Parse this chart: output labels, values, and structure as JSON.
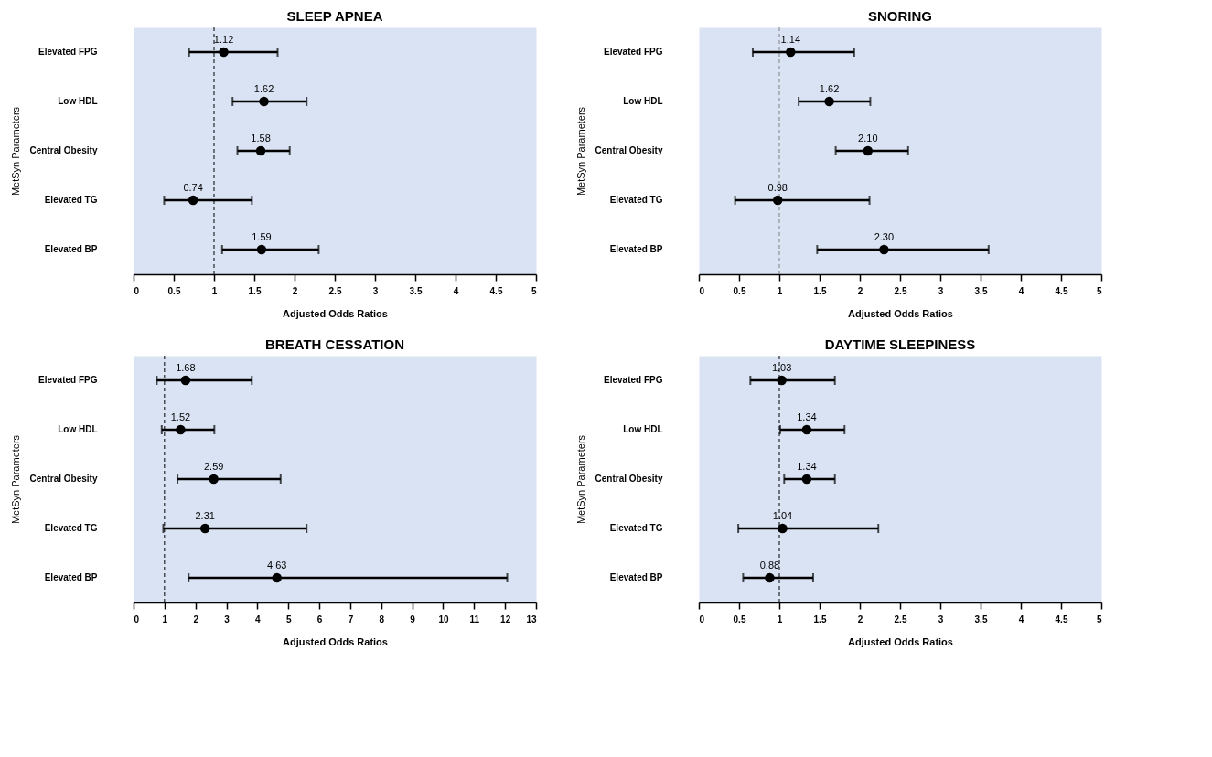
{
  "chart_data": [
    {
      "type": "scatter",
      "title": "SLEEP APNEA",
      "xlabel": "Adjusted Odds Ratios",
      "ylabel": "MetSyn Parameters",
      "orientation": "horizontal",
      "categories": [
        "Elevated FPG",
        "Low HDL",
        "Central Obesity",
        "Elevated TG",
        "Elevated BP"
      ],
      "values": [
        1.12,
        1.62,
        1.58,
        0.74,
        1.59
      ],
      "errors": [
        [
          0.69,
          1.79
        ],
        [
          1.23,
          2.15
        ],
        [
          1.29,
          1.94
        ],
        [
          0.38,
          1.47
        ],
        [
          1.1,
          2.3
        ]
      ],
      "value_labels": [
        "1.12",
        "1.62",
        "1.58",
        "0.74",
        "1.59"
      ],
      "color": "#000000",
      "marker": "circle",
      "grid": false,
      "xlim": [
        0,
        5
      ],
      "xticks": [
        0,
        0.5,
        1,
        1.5,
        2,
        2.5,
        3,
        3.5,
        4,
        4.5,
        5
      ],
      "ref_lines": [
        {
          "axis": "x",
          "value": 1,
          "line_style": "dashed",
          "color": "#000000"
        }
      ]
    },
    {
      "type": "scatter",
      "title": "SNORING",
      "xlabel": "Adjusted Odds Ratios",
      "ylabel": "MetSyn Parameters",
      "orientation": "horizontal",
      "categories": [
        "Elevated FPG",
        "Low HDL",
        "Central Obesity",
        "Elevated TG",
        "Elevated BP"
      ],
      "values": [
        1.14,
        1.62,
        2.1,
        0.98,
        2.3
      ],
      "errors": [
        [
          0.67,
          1.93
        ],
        [
          1.24,
          2.13
        ],
        [
          1.7,
          2.6
        ],
        [
          0.45,
          2.12
        ],
        [
          1.47,
          3.6
        ]
      ],
      "value_labels": [
        "1.14",
        "1.62",
        "2.10",
        "0.98",
        "2.30"
      ],
      "color": "#000000",
      "marker": "circle",
      "grid": false,
      "xlim": [
        0,
        5
      ],
      "xticks": [
        0,
        0.5,
        1,
        1.5,
        2,
        2.5,
        3,
        3.5,
        4,
        4.5,
        5
      ],
      "ref_lines": [
        {
          "axis": "x",
          "value": 1,
          "line_style": "dashed",
          "color": "#808080"
        }
      ]
    },
    {
      "type": "scatter",
      "title": "BREATH CESSATION",
      "xlabel": "Adjusted Odds Ratios",
      "ylabel": "MetSyn Parameters",
      "orientation": "horizontal",
      "categories": [
        "Elevated FPG",
        "Low HDL",
        "Central Obesity",
        "Elevated TG",
        "Elevated BP"
      ],
      "values": [
        1.68,
        1.52,
        2.59,
        2.31,
        4.63
      ],
      "errors": [
        [
          0.75,
          3.82
        ],
        [
          0.91,
          2.61
        ],
        [
          1.42,
          4.75
        ],
        [
          0.96,
          5.59
        ],
        [
          1.78,
          12.07
        ]
      ],
      "value_labels": [
        "1.68",
        "1.52",
        "2.59",
        "2.31",
        "4.63"
      ],
      "color": "#000000",
      "marker": "circle",
      "grid": false,
      "xlim": [
        0,
        13
      ],
      "xticks": [
        0,
        1,
        2,
        3,
        4,
        5,
        6,
        7,
        8,
        9,
        10,
        11,
        12,
        13
      ],
      "ref_lines": [
        {
          "axis": "x",
          "value": 1,
          "line_style": "dashed",
          "color": "#000000"
        }
      ]
    },
    {
      "type": "scatter",
      "title": "DAYTIME SLEEPINESS",
      "xlabel": "Adjusted Odds Ratios",
      "ylabel": "MetSyn Parameters",
      "orientation": "horizontal",
      "categories": [
        "Elevated FPG",
        "Low HDL",
        "Central Obesity",
        "Elevated TG",
        "Elevated BP"
      ],
      "values": [
        1.03,
        1.34,
        1.34,
        1.04,
        0.88
      ],
      "errors": [
        [
          0.64,
          1.69
        ],
        [
          1.01,
          1.81
        ],
        [
          1.06,
          1.69
        ],
        [
          0.49,
          2.23
        ],
        [
          0.55,
          1.42
        ]
      ],
      "value_labels": [
        "1.03",
        "1.34",
        "1.34",
        "1.04",
        "0.88"
      ],
      "color": "#000000",
      "marker": "circle",
      "grid": false,
      "xlim": [
        0,
        5
      ],
      "xticks": [
        0,
        0.5,
        1,
        1.5,
        2,
        2.5,
        3,
        3.5,
        4,
        4.5,
        5
      ],
      "ref_lines": [
        {
          "axis": "x",
          "value": 1,
          "line_style": "dashed",
          "color": "#000000"
        }
      ]
    }
  ]
}
